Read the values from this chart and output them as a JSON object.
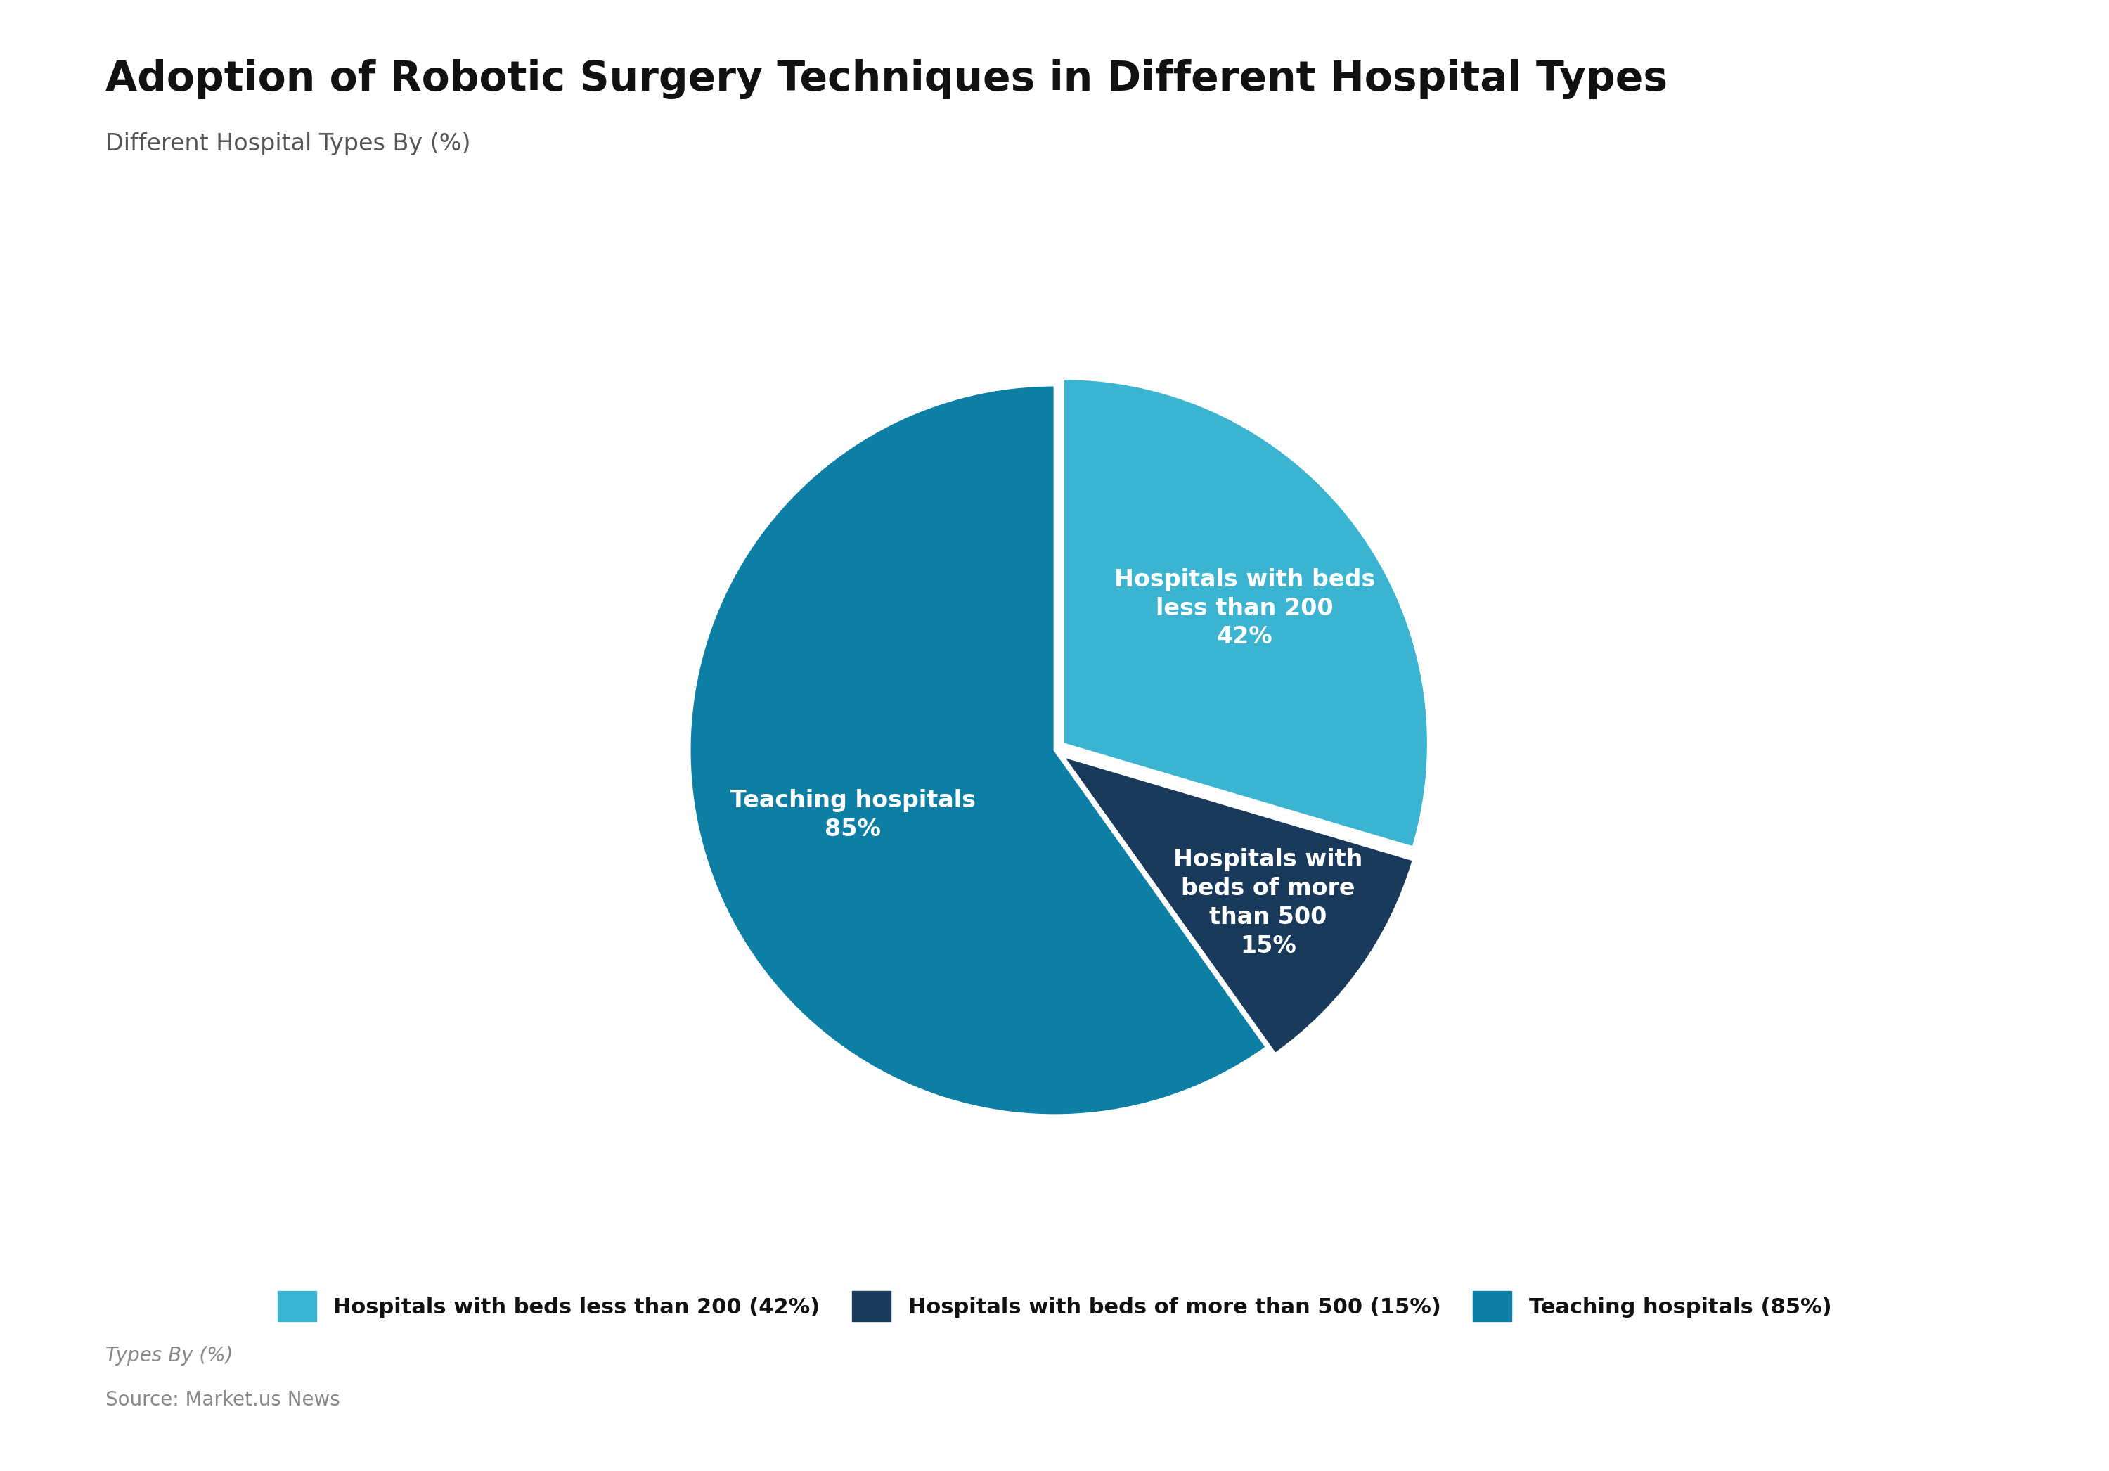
{
  "title": "Adoption of Robotic Surgery Techniques in Different Hospital Types",
  "subtitle": "Different Hospital Types By (%)",
  "footer_label": "Types By (%)",
  "footer_source": "Source: Market.us News",
  "slices": [
    42,
    15,
    85
  ],
  "labels": [
    "Hospitals with beds\nless than 200",
    "Hospitals with\nbeds of more\nthan 500",
    "Teaching hospitals"
  ],
  "pct_labels": [
    "42%",
    "15%",
    "85%"
  ],
  "colors": [
    "#3ab4d0",
    "#1a3a5c",
    "#0d7fa5"
  ],
  "legend_labels": [
    "Hospitals with beds less than 200 (42%)",
    "Hospitals with beds of more than 500 (15%)",
    "Teaching hospitals (85%)"
  ],
  "background_color": "#ffffff",
  "title_fontsize": 42,
  "subtitle_fontsize": 24,
  "legend_fontsize": 22,
  "label_fontsize": 24,
  "startangle": 90,
  "explode": [
    0.03,
    0.03,
    0.0
  ]
}
